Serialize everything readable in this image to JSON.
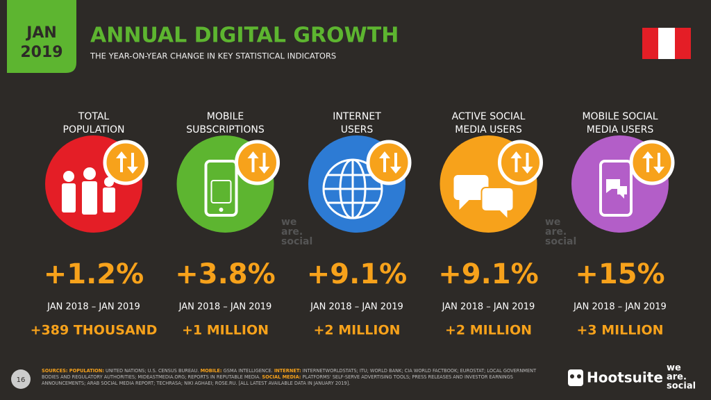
{
  "header": {
    "month": "JAN",
    "year": "2019",
    "title": "ANNUAL DIGITAL GROWTH",
    "subtitle": "THE YEAR-ON-YEAR CHANGE IN KEY STATISTICAL INDICATORS"
  },
  "indicators": [
    {
      "label_lines": [
        "TOTAL",
        "POPULATION"
      ],
      "change": "+1.2%",
      "period": "JAN 2018 – JAN 2019",
      "absolute": "+389 THOUSAND",
      "color": "#e41e26"
    },
    {
      "label_lines": [
        "MOBILE",
        "SUBSCRIPTIONS"
      ],
      "change": "+3.8%",
      "period": "JAN 2018 – JAN 2019",
      "absolute": "+1 MILLION",
      "color": "#5db530"
    },
    {
      "label_lines": [
        "INTERNET",
        "USERS"
      ],
      "change": "+9.1%",
      "period": "JAN 2018 – JAN 2019",
      "absolute": "+2 MILLION",
      "color": "#2d7bd4"
    },
    {
      "label_lines": [
        "ACTIVE SOCIAL",
        "MEDIA USERS"
      ],
      "change": "+9.1%",
      "period": "JAN 2018 – JAN 2019",
      "absolute": "+2 MILLION",
      "color": "#f7a21b"
    },
    {
      "label_lines": [
        "MOBILE SOCIAL",
        "MEDIA USERS"
      ],
      "change": "+15%",
      "period": "JAN 2018 – JAN 2019",
      "absolute": "+3 MILLION",
      "color": "#b35ec8"
    }
  ],
  "footer": {
    "page_number": "16",
    "sources": [
      {
        "text": "SOURCES: POPULATION:",
        "accent": true
      },
      {
        "text": " UNITED NATIONS; U.S. CENSUS BUREAU. "
      },
      {
        "text": "MOBILE:",
        "accent": true
      },
      {
        "text": " GSMA INTELLIGENCE. "
      },
      {
        "text": "INTERNET:",
        "accent": true
      },
      {
        "text": " INTERNETWORLDSTATS; ITU; WORLD BANK; CIA WORLD FACTBOOK; EUROSTAT; LOCAL GOVERNMENT BODIES AND REGULATORY AUTHORITIES; MIDEASTMEDIA.ORG; REPORTS IN REPUTABLE MEDIA. "
      },
      {
        "text": "SOCIAL MEDIA:",
        "accent": true
      },
      {
        "text": " PLATFORMS' SELF-SERVE ADVERTISING TOOLS; PRESS RELEASES AND INVESTOR EARNINGS ANNOUNCEMENTS; ARAB SOCIAL MEDIA REPORT; TECHRASA; NIKI AGHAEI; ROSE.RU. [ALL LATEST AVAILABLE DATA IN JANUARY 2019]."
      }
    ],
    "hootsuite": "Hootsuite",
    "we_are_social": [
      "we",
      "are.",
      "social"
    ]
  }
}
